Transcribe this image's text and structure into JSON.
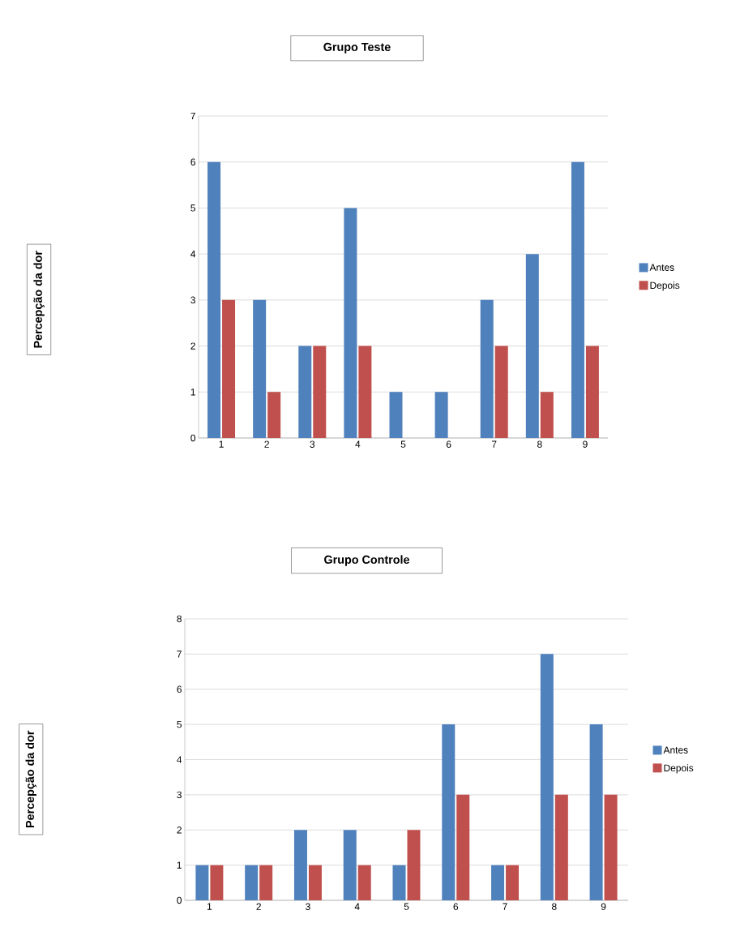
{
  "chart_data": [
    {
      "type": "bar",
      "title": "Grupo Teste",
      "ylabel": "Percepção da dor",
      "categories": [
        "1",
        "2",
        "3",
        "4",
        "5",
        "6",
        "7",
        "8",
        "9"
      ],
      "series": [
        {
          "name": "Antes",
          "color": "#4f81bd",
          "values": [
            6,
            3,
            2,
            5,
            1,
            1,
            3,
            4,
            6
          ]
        },
        {
          "name": "Depois",
          "color": "#c0504d",
          "values": [
            3,
            1,
            2,
            2,
            0,
            0,
            2,
            1,
            2
          ]
        }
      ],
      "ylim": [
        0,
        7
      ],
      "yticks": [
        0,
        1,
        2,
        3,
        4,
        5,
        6,
        7
      ],
      "grid": "y",
      "legend": "right"
    },
    {
      "type": "bar",
      "title": "Grupo Controle",
      "ylabel": "Percepção da dor",
      "categories": [
        "1",
        "2",
        "3",
        "4",
        "5",
        "6",
        "7",
        "8",
        "9"
      ],
      "series": [
        {
          "name": "Antes",
          "color": "#4f81bd",
          "values": [
            1,
            1,
            2,
            2,
            1,
            5,
            1,
            7,
            5
          ]
        },
        {
          "name": "Depois",
          "color": "#c0504d",
          "values": [
            1,
            1,
            1,
            1,
            2,
            3,
            1,
            3,
            3
          ]
        }
      ],
      "ylim": [
        0,
        8
      ],
      "yticks": [
        0,
        1,
        2,
        3,
        4,
        5,
        6,
        7,
        8
      ],
      "grid": "y",
      "legend": "right"
    }
  ]
}
